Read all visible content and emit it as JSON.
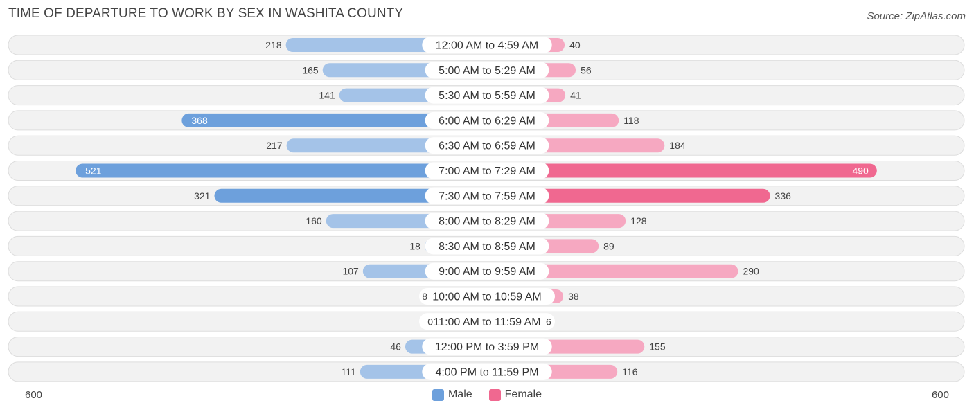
{
  "title": "TIME OF DEPARTURE TO WORK BY SEX IN WASHITA COUNTY",
  "source": "Source: ZipAtlas.com",
  "colors": {
    "male_light": "#a4c3e8",
    "male_dark": "#6da0dc",
    "female_light": "#f6a8c1",
    "female_dark": "#f06890",
    "row_bg": "#f2f2f2",
    "row_border": "#dddddd"
  },
  "chart_data": {
    "type": "bar",
    "orientation": "horizontal-diverging",
    "categories": [
      "12:00 AM to 4:59 AM",
      "5:00 AM to 5:29 AM",
      "5:30 AM to 5:59 AM",
      "6:00 AM to 6:29 AM",
      "6:30 AM to 6:59 AM",
      "7:00 AM to 7:29 AM",
      "7:30 AM to 7:59 AM",
      "8:00 AM to 8:29 AM",
      "8:30 AM to 8:59 AM",
      "9:00 AM to 9:59 AM",
      "10:00 AM to 10:59 AM",
      "11:00 AM to 11:59 AM",
      "12:00 PM to 3:59 PM",
      "4:00 PM to 11:59 PM"
    ],
    "series": [
      {
        "name": "Male",
        "values": [
          218,
          165,
          141,
          368,
          217,
          521,
          321,
          160,
          18,
          107,
          8,
          0,
          46,
          111
        ]
      },
      {
        "name": "Female",
        "values": [
          40,
          56,
          41,
          118,
          184,
          490,
          336,
          128,
          89,
          290,
          38,
          6,
          155,
          116
        ]
      }
    ],
    "xlim": [
      -600,
      600
    ],
    "axis_left_label": "600",
    "axis_right_label": "600",
    "legend": [
      "Male",
      "Female"
    ],
    "legend_position": "bottom-center"
  }
}
